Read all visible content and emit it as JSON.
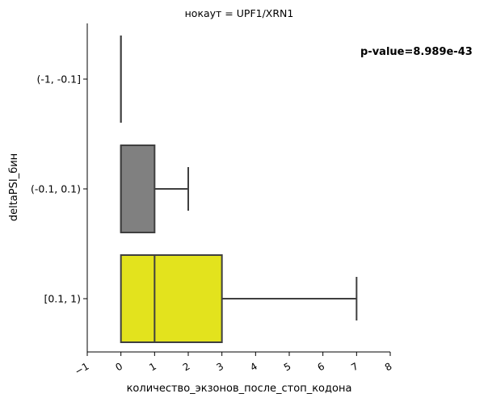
{
  "chart_data": {
    "type": "boxplot",
    "orientation": "horizontal",
    "title": "нокаут = UPF1/XRN1",
    "xlabel": "количество_экзонов_после_стоп_кодона",
    "ylabel": "deltaPSI_бин",
    "annotation": "p-value=8.989e-43",
    "xlim": [
      -1,
      8
    ],
    "xticks": [
      "−1",
      "0",
      "1",
      "2",
      "3",
      "4",
      "5",
      "6",
      "7",
      "8"
    ],
    "tick_rotation_deg": 30,
    "categories": [
      "(-1, -0.1]",
      "(-0.1, 0.1)",
      "[0.1, 1)"
    ],
    "boxes": [
      {
        "category": "(-1, -0.1]",
        "whisker_low": 0,
        "q1": 0,
        "median": 0,
        "q3": 0,
        "whisker_high": 0,
        "color": "#808080"
      },
      {
        "category": "(-0.1, 0.1)",
        "whisker_low": 0,
        "q1": 0,
        "median": 0,
        "q3": 1,
        "whisker_high": 2,
        "color": "#808080"
      },
      {
        "category": "[0.1, 1)",
        "whisker_low": 0,
        "q1": 0,
        "median": 1,
        "q3": 3,
        "whisker_high": 7,
        "color": "#e3e31d"
      }
    ],
    "line_color": "#3f3f3f",
    "grid": false
  }
}
